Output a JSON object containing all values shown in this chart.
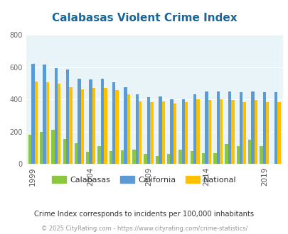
{
  "title": "Calabasas Violent Crime Index",
  "title_color": "#1a6699",
  "subtitle": "Crime Index corresponds to incidents per 100,000 inhabitants",
  "footer": "© 2025 CityRating.com - https://www.cityrating.com/crime-statistics/",
  "years": [
    1999,
    2000,
    2001,
    2002,
    2003,
    2004,
    2005,
    2006,
    2007,
    2008,
    2009,
    2010,
    2011,
    2012,
    2013,
    2014,
    2015,
    2016,
    2017,
    2018,
    2019,
    2020
  ],
  "calabasas": [
    180,
    200,
    210,
    155,
    130,
    75,
    110,
    80,
    85,
    90,
    60,
    50,
    60,
    90,
    80,
    65,
    65,
    125,
    110,
    150,
    110,
    0
  ],
  "california": [
    620,
    615,
    595,
    585,
    530,
    525,
    530,
    505,
    475,
    430,
    415,
    420,
    400,
    400,
    430,
    450,
    450,
    450,
    445,
    450,
    445,
    445
  ],
  "national": [
    510,
    505,
    500,
    475,
    465,
    470,
    470,
    460,
    430,
    390,
    385,
    390,
    375,
    385,
    400,
    395,
    400,
    395,
    385,
    395,
    385,
    385
  ],
  "calabasas_color": "#8dc63f",
  "california_color": "#5b9bd5",
  "national_color": "#ffc000",
  "bg_color": "#e8f4f8",
  "ylim": [
    0,
    800
  ],
  "yticks": [
    0,
    200,
    400,
    600,
    800
  ],
  "bar_width": 0.27,
  "figsize": [
    4.06,
    3.3
  ],
  "dpi": 100,
  "xtick_years": [
    1999,
    2004,
    2009,
    2014,
    2019
  ],
  "subtitle_color": "#333333",
  "footer_color": "#999999"
}
